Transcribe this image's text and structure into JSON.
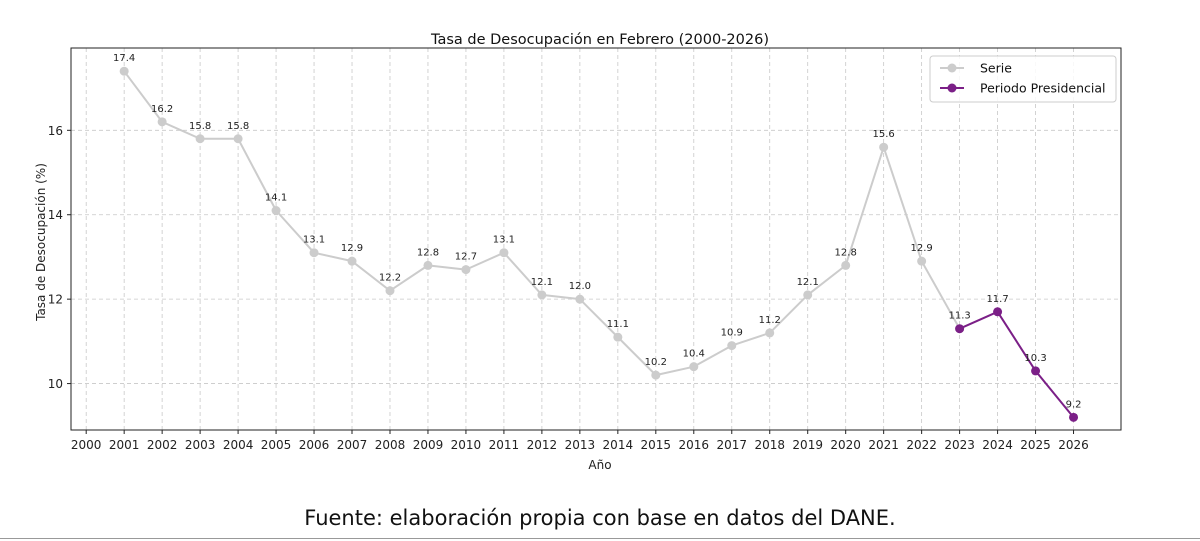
{
  "chart_data": {
    "type": "line",
    "title": "Tasa de Desocupación en Febrero (2000-2026)",
    "xlabel": "Año",
    "ylabel": "Tasa de Desocupación (%)",
    "x_ticks": [
      2000,
      2001,
      2002,
      2003,
      2004,
      2005,
      2006,
      2007,
      2008,
      2009,
      2010,
      2011,
      2012,
      2013,
      2014,
      2015,
      2016,
      2017,
      2018,
      2019,
      2020,
      2021,
      2022,
      2023,
      2024,
      2025,
      2026
    ],
    "y_ticks": [
      10,
      12,
      14,
      16
    ],
    "xlim": [
      1999.6,
      2027.25
    ],
    "ylim": [
      8.9,
      17.95
    ],
    "grid": true,
    "legend_position": "top-right",
    "series": [
      {
        "name": "Serie",
        "color": "#cccccc",
        "x": [
          2001,
          2002,
          2003,
          2004,
          2005,
          2006,
          2007,
          2008,
          2009,
          2010,
          2011,
          2012,
          2013,
          2014,
          2015,
          2016,
          2017,
          2018,
          2019,
          2020,
          2021,
          2022,
          2023
        ],
        "y": [
          17.4,
          16.2,
          15.8,
          15.8,
          14.1,
          13.1,
          12.9,
          12.2,
          12.8,
          12.7,
          13.1,
          12.1,
          12.0,
          11.1,
          10.2,
          10.4,
          10.9,
          11.2,
          12.1,
          12.8,
          15.6,
          12.9,
          11.3
        ],
        "labels": [
          "17.4",
          "16.2",
          "15.8",
          "15.8",
          "14.1",
          "13.1",
          "12.9",
          "12.2",
          "12.8",
          "12.7",
          "13.1",
          "12.1",
          "12.0",
          "11.1",
          "10.2",
          "10.4",
          "10.9",
          "11.2",
          "12.1",
          "12.8",
          "15.6",
          "12.9"
        ]
      },
      {
        "name": "Periodo Presidencial",
        "color": "#7b1f87",
        "x": [
          2023,
          2024,
          2025,
          2026
        ],
        "y": [
          11.3,
          11.7,
          10.3,
          9.2
        ],
        "labels": [
          "11.3",
          "11.7",
          "10.3",
          "9.2"
        ]
      }
    ]
  },
  "source_note": "Fuente: elaboración propia con base en datos del DANE."
}
